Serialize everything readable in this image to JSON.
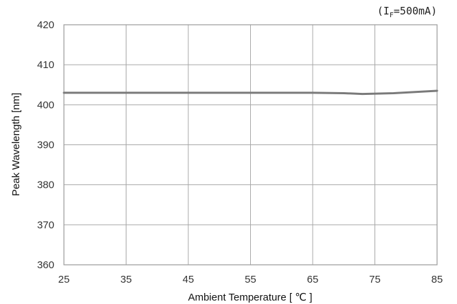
{
  "chart_data": {
    "type": "line",
    "title": "",
    "annotation": {
      "prefix": "(I",
      "subscript": "F",
      "suffix": "=500mA)"
    },
    "xlabel": "Ambient Temperature [ ℃ ]",
    "ylabel": "Peak Wavelength [nm]",
    "xlim": [
      25,
      85
    ],
    "ylim": [
      360,
      420
    ],
    "x_ticks": [
      25,
      35,
      45,
      55,
      65,
      75,
      85
    ],
    "y_ticks": [
      360,
      370,
      380,
      390,
      400,
      410,
      420
    ],
    "grid": true,
    "series": [
      {
        "x": [
          25,
          35,
          45,
          55,
          65,
          70,
          73,
          78,
          85
        ],
        "y": [
          403,
          403,
          403,
          403,
          403,
          402.9,
          402.7,
          402.9,
          403.5
        ],
        "color": "#7a7a7a"
      }
    ]
  }
}
